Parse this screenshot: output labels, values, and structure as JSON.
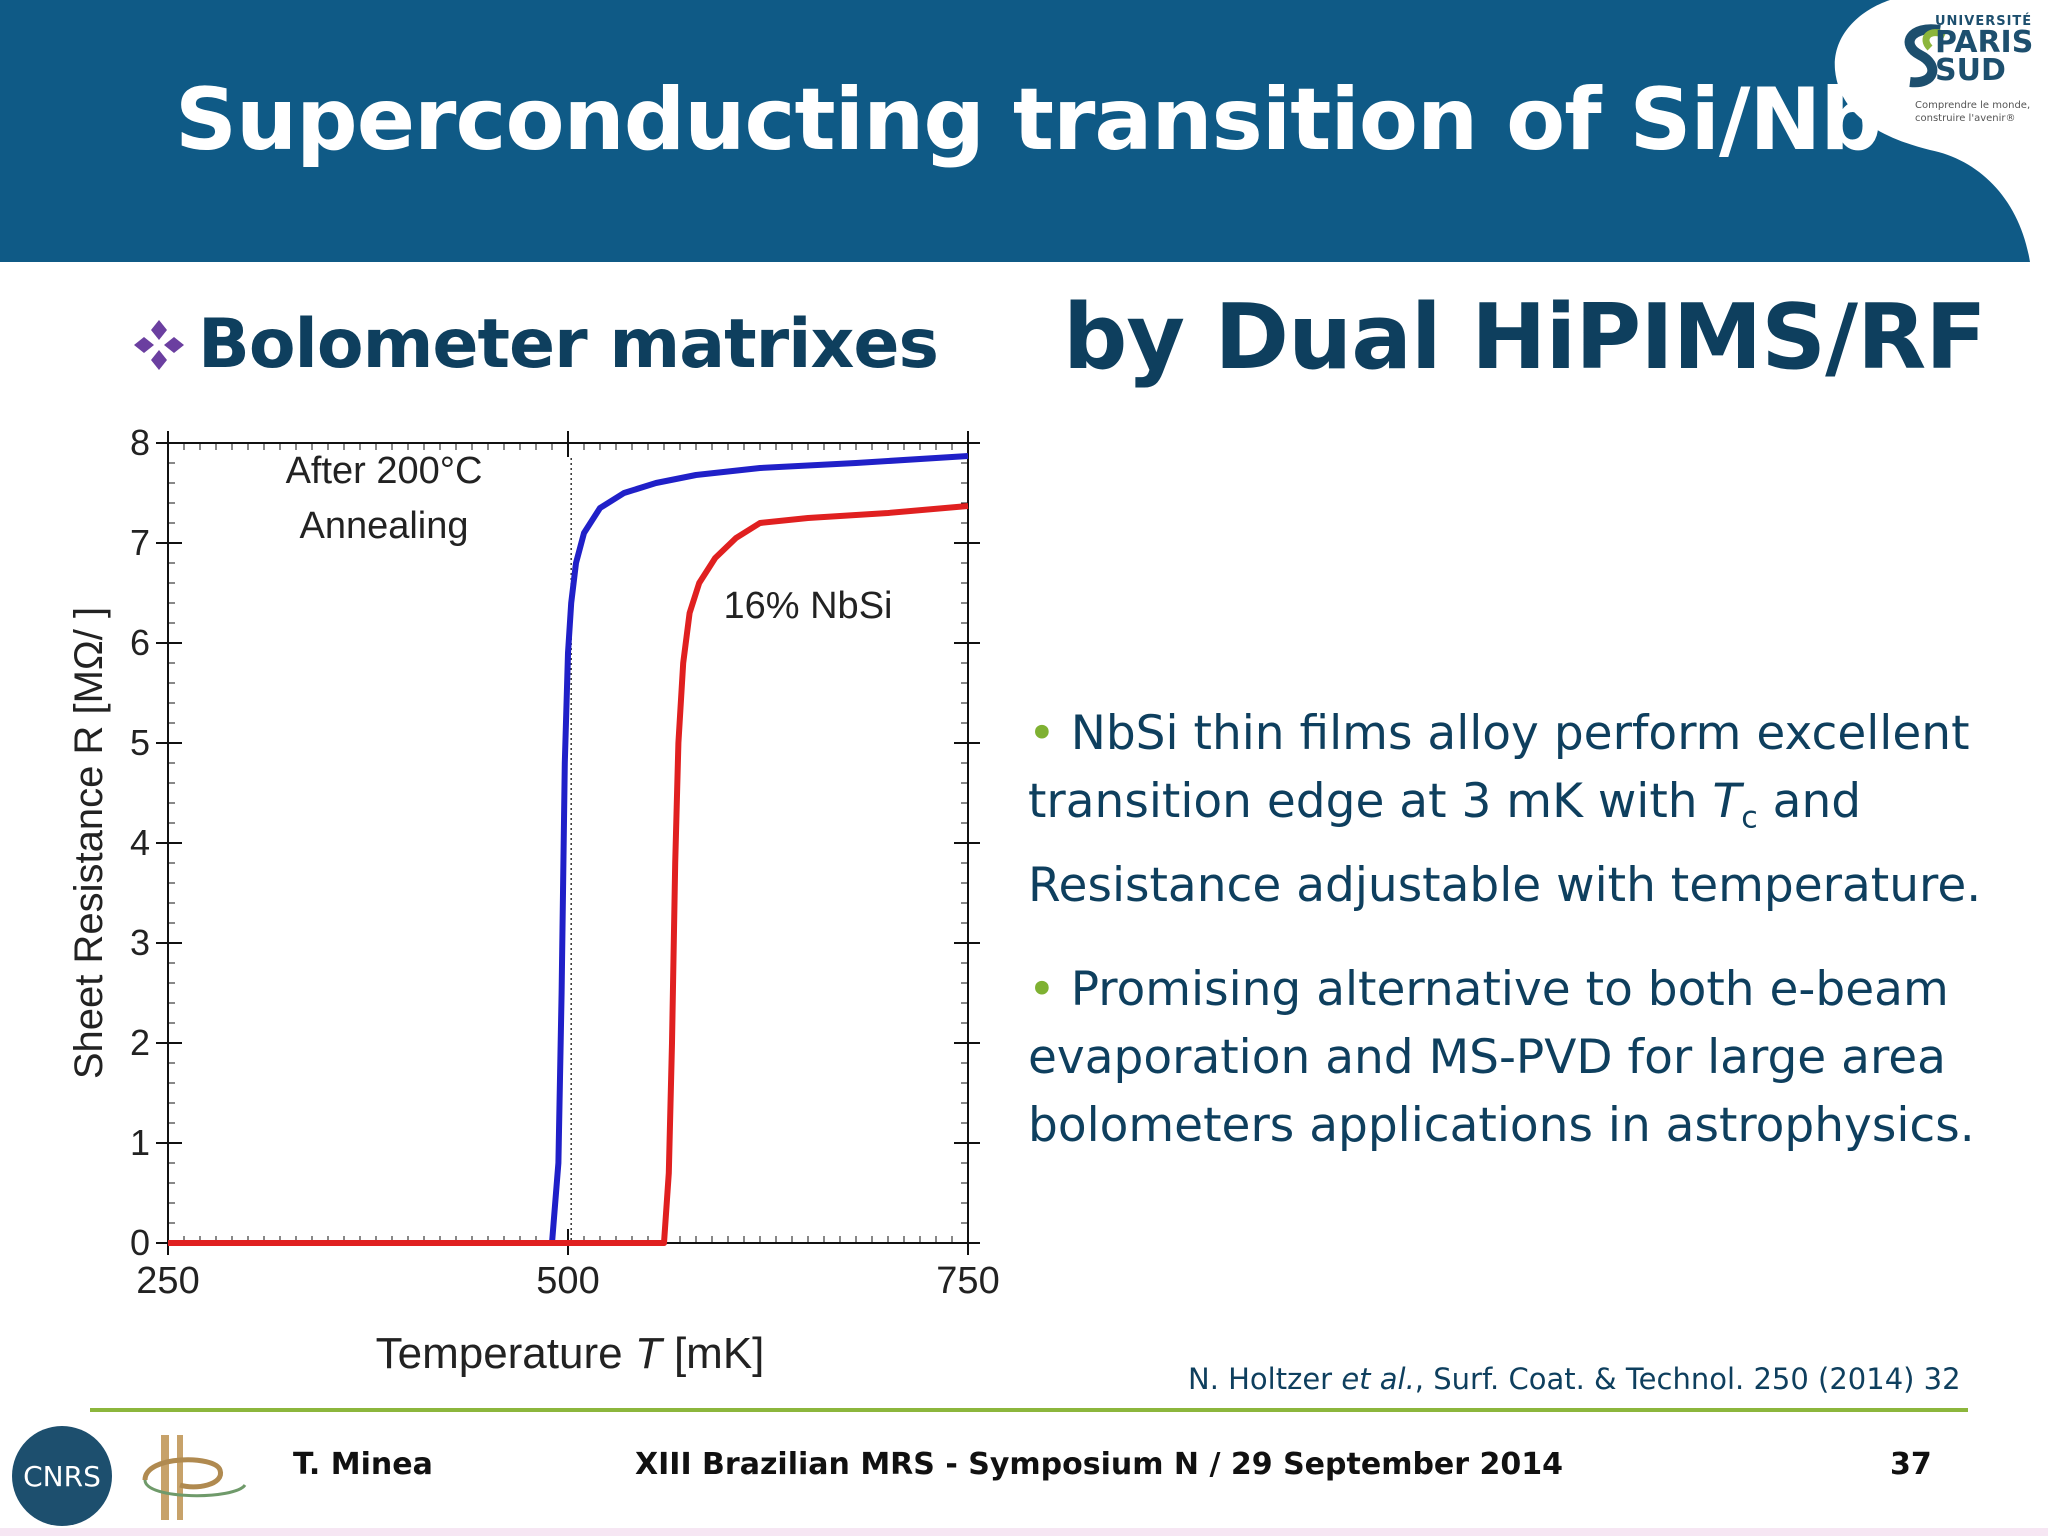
{
  "slide": {
    "title": "Superconducting transition of Si/Nb",
    "section_heading": "Bolometer matrixes",
    "subtitle": "by Dual HiPIMS/RF",
    "bullets": [
      {
        "line1": "NbSi thin films alloy perform excellent",
        "line2_a": "transition edge at 3 mK with ",
        "line2_T": "T",
        "line2_sub": "c",
        "line2_b": " and",
        "line3": "Resistance adjustable with temperature."
      },
      {
        "line1": "Promising alternative to both e-beam",
        "line2": "evaporation and MS-PVD for large area",
        "line3": "bolometers applications in astrophysics."
      }
    ],
    "bullet_symbol": "•",
    "reference": {
      "author": "N. Holtzer ",
      "etal": "et al.",
      "rest": ", Surf. Coat. & Technol. 250 (2014) 32"
    },
    "logo": {
      "small": "UNIVERSITÉ",
      "big1": "PARIS",
      "big2": "SUD",
      "tag1": "Comprendre le monde,",
      "tag2": "construire l'avenir®"
    },
    "colors": {
      "header": "#0f5a86",
      "text": "#0e3f5e",
      "bullet": "#7fb132",
      "rule": "#8cb63c",
      "diamond": "#6b3fa0"
    }
  },
  "footer": {
    "author": "T. Minea",
    "event": "XIII Brazilian MRS - Symposium N / 29 September 2014",
    "page": "37",
    "cnrs_label": "CNRS"
  },
  "chart_data": {
    "type": "line",
    "xlabel_main": "Temperature ",
    "xlabel_italic": "T",
    "xlabel_unit": " [mK]",
    "ylabel": "Sheet Resistance R  [MΩ/ ]",
    "xlim": [
      250,
      750
    ],
    "ylim": [
      0,
      8
    ],
    "xticks": [
      250,
      500,
      750
    ],
    "yticks": [
      0,
      1,
      2,
      3,
      4,
      5,
      6,
      7,
      8
    ],
    "annotations": [
      {
        "text": "After 200°C",
        "x": 385,
        "y": 7.6
      },
      {
        "text": "Annealing",
        "x": 385,
        "y": 7.05
      },
      {
        "text": "16% NbSi",
        "x": 650,
        "y": 6.25
      }
    ],
    "vline_x": 502,
    "series": [
      {
        "color": "#2020c8",
        "x": [
          250,
          490,
          494,
          496,
          498,
          500,
          502,
          505,
          510,
          520,
          535,
          555,
          580,
          620,
          680,
          750
        ],
        "y": [
          0,
          0,
          0.8,
          2.5,
          4.8,
          5.9,
          6.4,
          6.8,
          7.1,
          7.35,
          7.5,
          7.6,
          7.68,
          7.75,
          7.8,
          7.87
        ]
      },
      {
        "color": "#e02020",
        "x": [
          250,
          560,
          563,
          565,
          567,
          569,
          572,
          576,
          582,
          592,
          605,
          620,
          650,
          700,
          750
        ],
        "y": [
          0,
          0,
          0.7,
          2.0,
          3.8,
          5.0,
          5.8,
          6.3,
          6.6,
          6.85,
          7.05,
          7.2,
          7.25,
          7.3,
          7.37
        ]
      }
    ]
  }
}
